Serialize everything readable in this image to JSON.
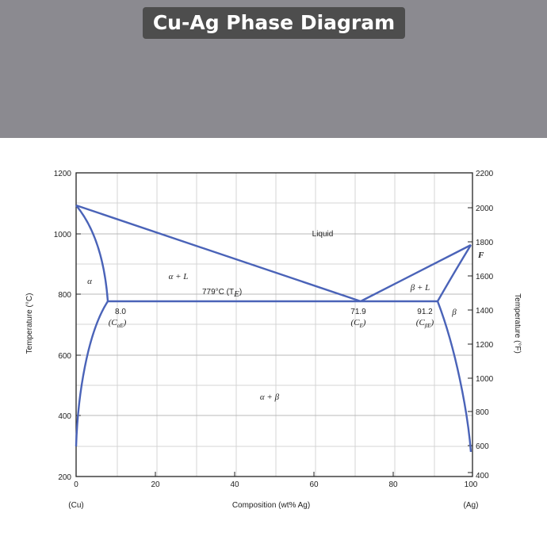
{
  "header": {
    "title": "Cu-Ag Phase Diagram"
  },
  "axes": {
    "x_label": "Composition (wt% Ag)",
    "y_left_label": "Temperature (°C)",
    "y_right_label": "Temperature (°F)",
    "x_ticks": [
      "0",
      "20",
      "40",
      "60",
      "80",
      "100"
    ],
    "x_end_labels": {
      "left": "(Cu)",
      "right": "(Ag)"
    },
    "y_left_ticks": [
      "200",
      "400",
      "600",
      "800",
      "1000",
      "1200"
    ],
    "y_right_ticks": [
      "400",
      "600",
      "800",
      "1000",
      "1200",
      "1400",
      "1600",
      "1800",
      "2000",
      "2200"
    ],
    "x_range": [
      0,
      100
    ],
    "y_left_range": [
      200,
      1200
    ]
  },
  "regions": {
    "liquid": "Liquid",
    "alpha": "α",
    "alpha_liquid": "α + L",
    "beta_liquid": "β + L",
    "beta": "β",
    "alpha_beta": "α + β"
  },
  "annotations": {
    "eutectic_temp": "779°C (T",
    "eutectic_temp_sub": "E",
    "ca_value": "8.0",
    "ca_symbol": "(C",
    "ca_sub": "αE",
    "ce_value": "71.9",
    "ce_symbol": "(C",
    "ce_sub": "E",
    "cb_value": "91.2",
    "cb_symbol": "(C",
    "cb_sub": "βE",
    "f_mark": "F"
  },
  "points": {
    "cu_melting": {
      "x": 0,
      "y": 1085
    },
    "ag_melting": {
      "x": 100,
      "y": 962
    },
    "alpha_max": {
      "x": 8.0,
      "y": 779
    },
    "eutectic": {
      "x": 71.9,
      "y": 779
    },
    "beta_max": {
      "x": 91.2,
      "y": 779
    }
  },
  "colors": {
    "curve": "#4a63b8",
    "grid": "#cfcfcf",
    "band": "#8b8a90",
    "title_bg": "#4d4d4d"
  }
}
